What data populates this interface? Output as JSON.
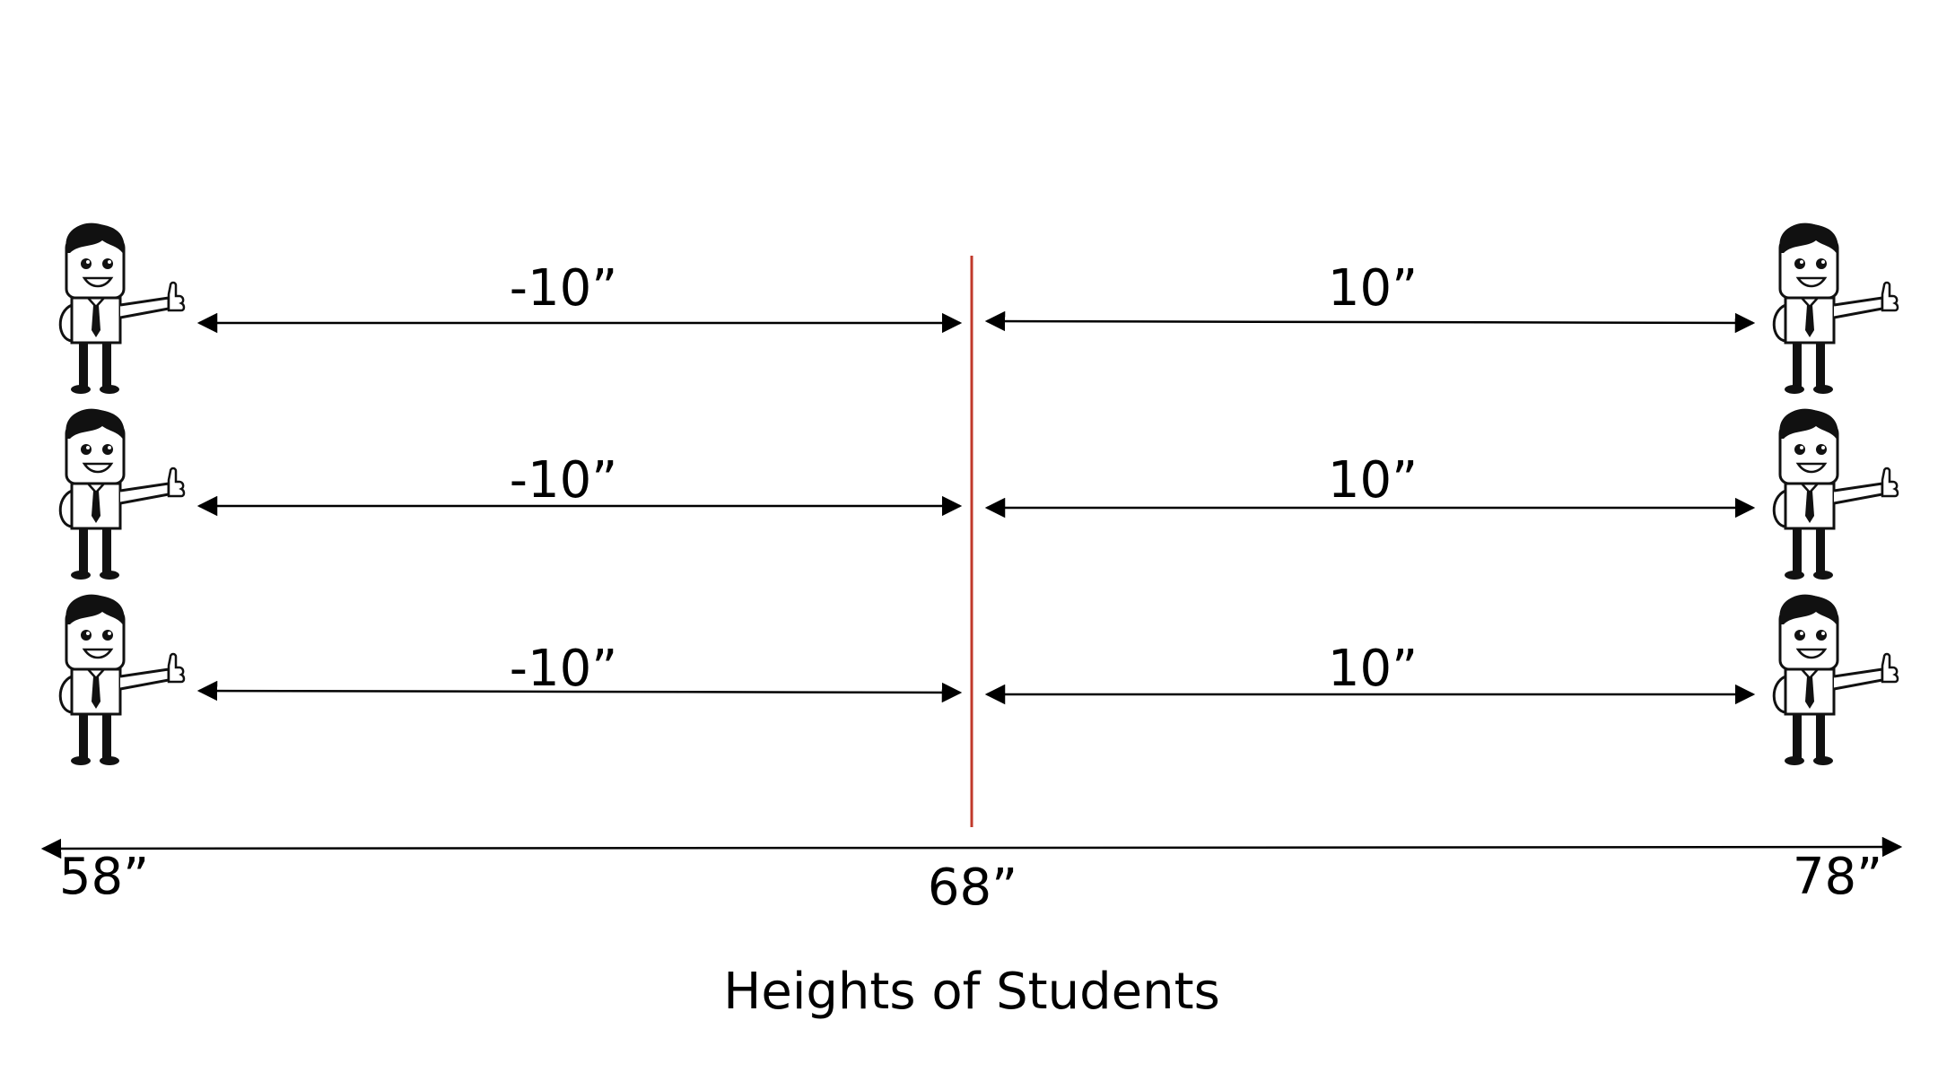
{
  "diagram": {
    "left_deviation_label": "-10”",
    "right_deviation_label": "10”",
    "rows": 3,
    "axis": {
      "ticks": [
        "58”",
        "68”",
        "78”"
      ],
      "caption": "Heights of Students"
    },
    "colors": {
      "mean_line": "#c0392b",
      "ink": "#000000",
      "shirt": "#ffffff"
    },
    "icons": [
      "cartoon-man-thumbs-up-icon"
    ]
  }
}
